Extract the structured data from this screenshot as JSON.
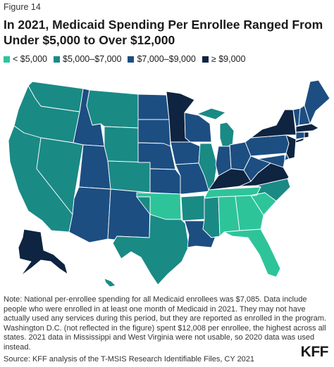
{
  "figure_label": "Figure 14",
  "title": "In 2021, Medicaid Spending Per Enrollee Ranged From Under $5,000 to Over $12,000",
  "legend": [
    {
      "label": "< $5,000",
      "color": "#2ec49a"
    },
    {
      "label": "$5,000–$7,000",
      "color": "#1a8a85"
    },
    {
      "label": "$7,000–$9,000",
      "color": "#1c4e82"
    },
    {
      "label": "≥ $9,000",
      "color": "#0e2440"
    }
  ],
  "states": [
    {
      "id": "WA",
      "bin": 1
    },
    {
      "id": "OR",
      "bin": 1
    },
    {
      "id": "CA",
      "bin": 1
    },
    {
      "id": "NV",
      "bin": 1
    },
    {
      "id": "ID",
      "bin": 2
    },
    {
      "id": "MT",
      "bin": 1
    },
    {
      "id": "WY",
      "bin": 1
    },
    {
      "id": "UT",
      "bin": 2
    },
    {
      "id": "AZ",
      "bin": 2
    },
    {
      "id": "CO",
      "bin": 1
    },
    {
      "id": "NM",
      "bin": 2
    },
    {
      "id": "ND",
      "bin": 2
    },
    {
      "id": "SD",
      "bin": 2
    },
    {
      "id": "NE",
      "bin": 2
    },
    {
      "id": "KS",
      "bin": 2
    },
    {
      "id": "OK",
      "bin": 0
    },
    {
      "id": "TX",
      "bin": 1
    },
    {
      "id": "MN",
      "bin": 3
    },
    {
      "id": "IA",
      "bin": 2
    },
    {
      "id": "MO",
      "bin": 2
    },
    {
      "id": "AR",
      "bin": 1
    },
    {
      "id": "LA",
      "bin": 2
    },
    {
      "id": "WI",
      "bin": 2
    },
    {
      "id": "IL",
      "bin": 1
    },
    {
      "id": "MI",
      "bin": 1
    },
    {
      "id": "IN",
      "bin": 2
    },
    {
      "id": "OH",
      "bin": 2
    },
    {
      "id": "KY",
      "bin": 3
    },
    {
      "id": "TN",
      "bin": 0
    },
    {
      "id": "MS",
      "bin": 1
    },
    {
      "id": "AL",
      "bin": 0
    },
    {
      "id": "GA",
      "bin": 0
    },
    {
      "id": "FL",
      "bin": 0
    },
    {
      "id": "SC",
      "bin": 0
    },
    {
      "id": "NC",
      "bin": 1
    },
    {
      "id": "VA",
      "bin": 3
    },
    {
      "id": "WV",
      "bin": 2
    },
    {
      "id": "PA",
      "bin": 2
    },
    {
      "id": "NY",
      "bin": 3
    },
    {
      "id": "VT",
      "bin": 2
    },
    {
      "id": "NH",
      "bin": 2
    },
    {
      "id": "ME",
      "bin": 2
    },
    {
      "id": "MA",
      "bin": 3
    },
    {
      "id": "CT",
      "bin": 2
    },
    {
      "id": "RI",
      "bin": 3
    },
    {
      "id": "NJ",
      "bin": 3
    },
    {
      "id": "DE",
      "bin": 2
    },
    {
      "id": "MD",
      "bin": 2
    },
    {
      "id": "AK",
      "bin": 3
    },
    {
      "id": "HI",
      "bin": 1
    }
  ],
  "note": "Note: National per-enrollee spending for all Medicaid enrollees was $7,085. Data include people who were enrolled in at least one month of Medicaid in 2021. They may not have actually used any services during this period, but they are reported as enrolled in the program. Washington D.C. (not reflected in the figure) spent $12,008 per enrollee, the highest across all states. 2021 data in Mississippi and West Virginia were not usable, so 2020 data was used instead.",
  "source": "Source: KFF analysis of the T-MSIS Research Identifiable Files, CY 2021",
  "logo": "KFF"
}
